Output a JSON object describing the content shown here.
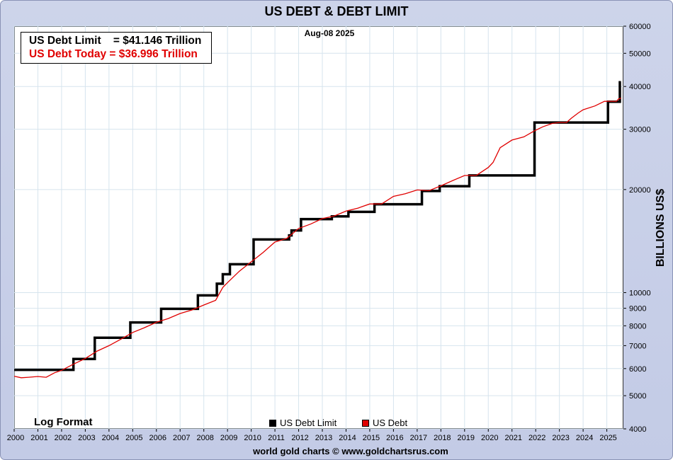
{
  "chart_data": {
    "type": "line",
    "title": "US DEBT & DEBT LIMIT",
    "date_label": "Aug-08  2025",
    "ylabel": "BILLIONS US$",
    "xlabel": "",
    "y_scale": "log",
    "ylim": [
      4000,
      60000
    ],
    "xlim": [
      2000,
      2025.7
    ],
    "y_ticks": [
      4000,
      5000,
      6000,
      7000,
      8000,
      9000,
      10000,
      20000,
      30000,
      40000,
      50000,
      60000
    ],
    "x_ticks": [
      2000,
      2001,
      2002,
      2003,
      2004,
      2005,
      2006,
      2007,
      2008,
      2009,
      2010,
      2011,
      2012,
      2013,
      2014,
      2015,
      2016,
      2017,
      2018,
      2019,
      2020,
      2021,
      2022,
      2023,
      2024,
      2025
    ],
    "grid": true,
    "annotation_box": {
      "line1": "US Debt Limit    = $41.146 Trillion",
      "line2": "US Debt Today = $36.996 Trillion"
    },
    "scale_note": "Log Format",
    "series": [
      {
        "name": "US Debt Limit",
        "color": "#000000",
        "step": true,
        "points": [
          [
            2000.0,
            5950
          ],
          [
            2002.5,
            6400
          ],
          [
            2003.4,
            7384
          ],
          [
            2004.9,
            8184
          ],
          [
            2006.2,
            8965
          ],
          [
            2007.75,
            9815
          ],
          [
            2008.55,
            10615
          ],
          [
            2008.8,
            11315
          ],
          [
            2009.1,
            12104
          ],
          [
            2010.1,
            14294
          ],
          [
            2011.6,
            14694
          ],
          [
            2011.7,
            15194
          ],
          [
            2012.1,
            16394
          ],
          [
            2013.4,
            16700
          ],
          [
            2014.1,
            17212
          ],
          [
            2015.2,
            18113
          ],
          [
            2017.2,
            19808
          ],
          [
            2017.95,
            20456
          ],
          [
            2019.2,
            21988
          ],
          [
            2021.95,
            31381
          ],
          [
            2025.05,
            36100
          ],
          [
            2025.55,
            41146
          ],
          [
            2025.6,
            41146
          ]
        ]
      },
      {
        "name": "US Debt",
        "color": "#e00000",
        "points": [
          [
            2000.0,
            5700
          ],
          [
            2000.3,
            5640
          ],
          [
            2000.6,
            5660
          ],
          [
            2001.0,
            5690
          ],
          [
            2001.35,
            5660
          ],
          [
            2001.7,
            5830
          ],
          [
            2002.0,
            5930
          ],
          [
            2002.5,
            6180
          ],
          [
            2003.0,
            6420
          ],
          [
            2003.5,
            6750
          ],
          [
            2004.0,
            7000
          ],
          [
            2004.5,
            7310
          ],
          [
            2005.0,
            7650
          ],
          [
            2005.5,
            7900
          ],
          [
            2006.0,
            8190
          ],
          [
            2006.5,
            8400
          ],
          [
            2007.0,
            8690
          ],
          [
            2007.5,
            8900
          ],
          [
            2008.0,
            9200
          ],
          [
            2008.5,
            9500
          ],
          [
            2008.8,
            10350
          ],
          [
            2009.0,
            10700
          ],
          [
            2009.5,
            11550
          ],
          [
            2010.0,
            12300
          ],
          [
            2010.5,
            13100
          ],
          [
            2011.0,
            14050
          ],
          [
            2011.5,
            14400
          ],
          [
            2012.0,
            15400
          ],
          [
            2012.5,
            15850
          ],
          [
            2013.0,
            16450
          ],
          [
            2013.5,
            16740
          ],
          [
            2014.0,
            17300
          ],
          [
            2014.5,
            17650
          ],
          [
            2015.0,
            18150
          ],
          [
            2015.5,
            18150
          ],
          [
            2016.0,
            19100
          ],
          [
            2016.5,
            19450
          ],
          [
            2017.0,
            19950
          ],
          [
            2017.5,
            19850
          ],
          [
            2018.0,
            20500
          ],
          [
            2018.5,
            21250
          ],
          [
            2019.0,
            21980
          ],
          [
            2019.5,
            22000
          ],
          [
            2020.0,
            23200
          ],
          [
            2020.2,
            24000
          ],
          [
            2020.5,
            26500
          ],
          [
            2021.0,
            27900
          ],
          [
            2021.5,
            28500
          ],
          [
            2021.95,
            29700
          ],
          [
            2022.3,
            30500
          ],
          [
            2022.7,
            31200
          ],
          [
            2023.0,
            31400
          ],
          [
            2023.3,
            31400
          ],
          [
            2023.5,
            32300
          ],
          [
            2023.8,
            33500
          ],
          [
            2024.0,
            34200
          ],
          [
            2024.5,
            35100
          ],
          [
            2024.9,
            36200
          ],
          [
            2025.05,
            36200
          ],
          [
            2025.4,
            36200
          ],
          [
            2025.5,
            36800
          ],
          [
            2025.6,
            36996
          ]
        ]
      }
    ]
  },
  "legend": [
    {
      "label": "US Debt Limit",
      "color": "#000000"
    },
    {
      "label": "US Debt",
      "color": "#e00000"
    }
  ],
  "footer": "world gold charts © www.goldchartsrus.com"
}
